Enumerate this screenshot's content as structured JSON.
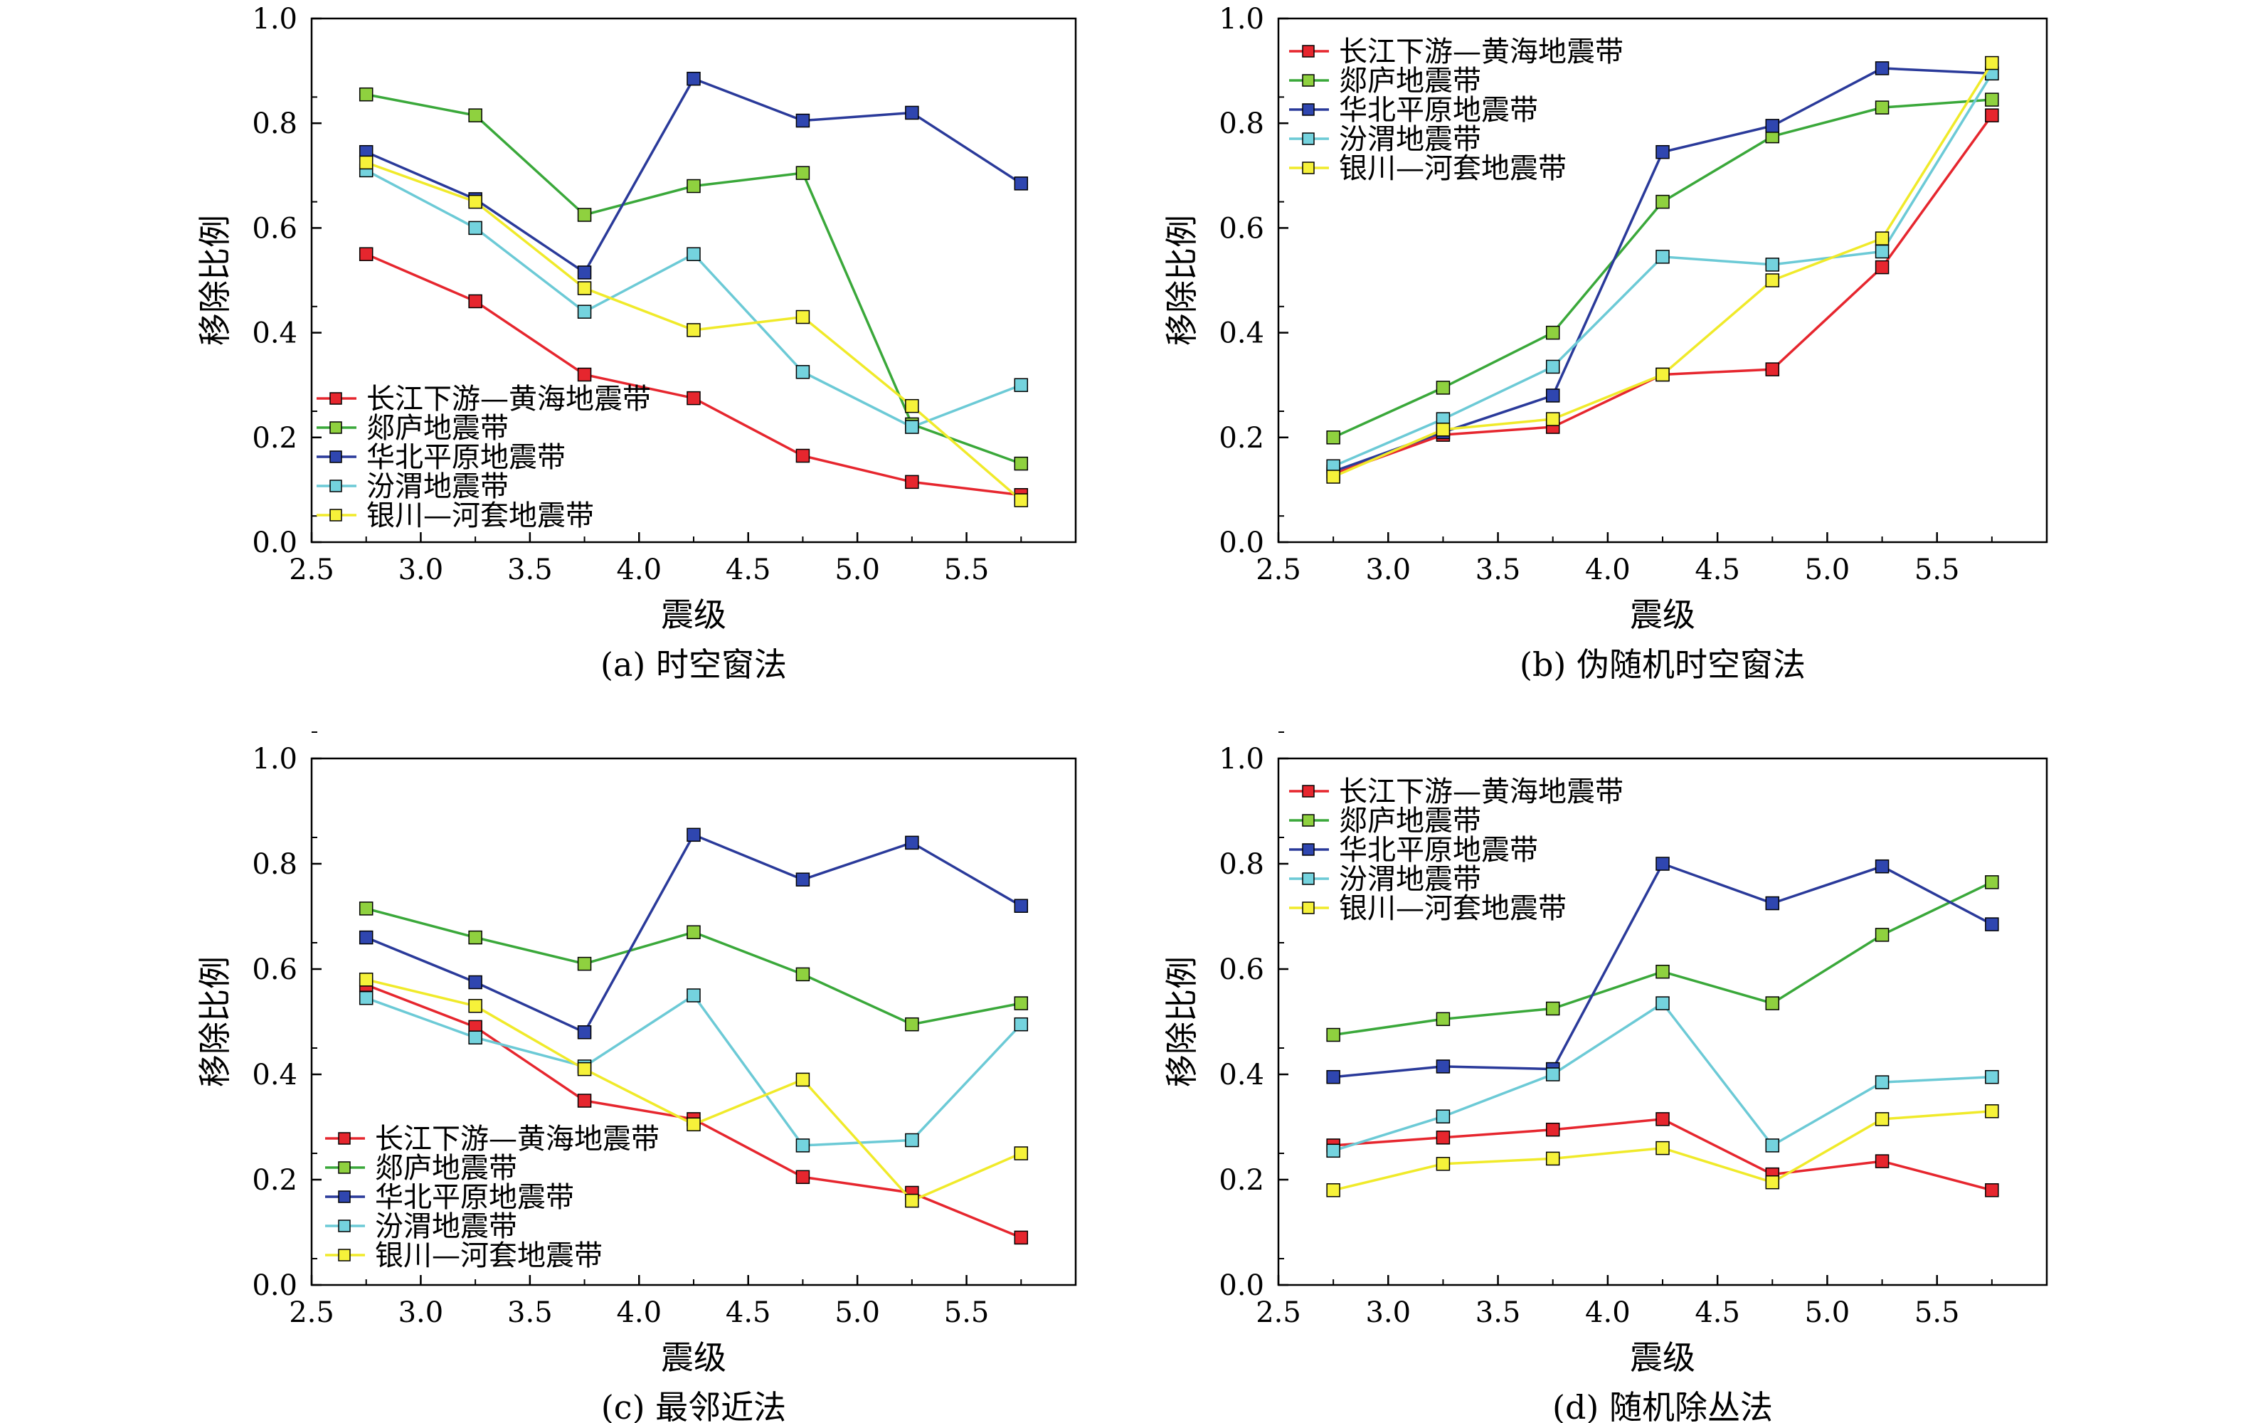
{
  "series_styles": [
    {
      "line_color": "#e6262e",
      "marker_fill": "#e6262e"
    },
    {
      "line_color": "#3aa83a",
      "marker_fill": "#8fd13f"
    },
    {
      "line_color": "#2a3a9a",
      "marker_fill": "#2f46b0"
    },
    {
      "line_color": "#6ccad6",
      "marker_fill": "#74d3de"
    },
    {
      "line_color": "#f0ea2a",
      "marker_fill": "#f6f23a"
    }
  ],
  "chart_data": [
    {
      "type": "line",
      "caption": "(a) 时空窗法",
      "xlabel": "震级",
      "ylabel": "移除比例",
      "xlim": [
        2.5,
        6.0
      ],
      "ylim": [
        0.0,
        1.0
      ],
      "xticks": [
        "2.5",
        "3.0",
        "3.5",
        "4.0",
        "4.5",
        "5.0",
        "5.5"
      ],
      "yticks": [
        "0.0",
        "0.2",
        "0.4",
        "0.6",
        "0.8",
        "1.0"
      ],
      "legend_position": "bottom-left",
      "x": [
        2.75,
        3.25,
        3.75,
        4.25,
        4.75,
        5.25,
        5.75
      ],
      "series": [
        {
          "name": "长江下游—黄海地震带",
          "values": [
            0.55,
            0.46,
            0.32,
            0.275,
            0.165,
            0.115,
            0.09
          ]
        },
        {
          "name": "郯庐地震带",
          "values": [
            0.855,
            0.815,
            0.625,
            0.68,
            0.705,
            0.225,
            0.15
          ]
        },
        {
          "name": "华北平原地震带",
          "values": [
            0.745,
            0.655,
            0.515,
            0.885,
            0.805,
            0.82,
            0.685
          ]
        },
        {
          "name": "汾渭地震带",
          "values": [
            0.71,
            0.6,
            0.44,
            0.55,
            0.325,
            0.22,
            0.3
          ]
        },
        {
          "name": "银川—河套地震带",
          "values": [
            0.725,
            0.65,
            0.485,
            0.405,
            0.43,
            0.26,
            0.08
          ]
        }
      ]
    },
    {
      "type": "line",
      "caption": "(b) 伪随机时空窗法",
      "xlabel": "震级",
      "ylabel": "移除比例",
      "xlim": [
        2.5,
        6.0
      ],
      "ylim": [
        0.0,
        1.0
      ],
      "xticks": [
        "2.5",
        "3.0",
        "3.5",
        "4.0",
        "4.5",
        "5.0",
        "5.5"
      ],
      "yticks": [
        "0.0",
        "0.2",
        "0.4",
        "0.6",
        "0.8",
        "1.0"
      ],
      "legend_position": "top-left",
      "x": [
        2.75,
        3.25,
        3.75,
        4.25,
        4.75,
        5.25,
        5.75
      ],
      "series": [
        {
          "name": "长江下游—黄海地震带",
          "values": [
            0.13,
            0.205,
            0.22,
            0.32,
            0.33,
            0.525,
            0.815
          ]
        },
        {
          "name": "郯庐地震带",
          "values": [
            0.2,
            0.295,
            0.4,
            0.65,
            0.775,
            0.83,
            0.845
          ]
        },
        {
          "name": "华北平原地震带",
          "values": [
            0.135,
            0.21,
            0.28,
            0.745,
            0.795,
            0.905,
            0.895
          ]
        },
        {
          "name": "汾渭地震带",
          "values": [
            0.145,
            0.235,
            0.335,
            0.545,
            0.53,
            0.555,
            0.895
          ]
        },
        {
          "name": "银川—河套地震带",
          "values": [
            0.125,
            0.215,
            0.235,
            0.32,
            0.5,
            0.58,
            0.915
          ]
        }
      ]
    },
    {
      "type": "line",
      "caption": "(c) 最邻近法",
      "xlabel": "震级",
      "ylabel": "移除比例",
      "xlim": [
        2.5,
        6.0
      ],
      "ylim": [
        0.0,
        1.0
      ],
      "xticks": [
        "2.5",
        "3.0",
        "3.5",
        "4.0",
        "4.5",
        "5.0",
        "5.5"
      ],
      "yticks": [
        "0.0",
        "0.2",
        "0.4",
        "0.6",
        "0.8",
        "1.0"
      ],
      "legend_position": "bottom-left",
      "x": [
        2.75,
        3.25,
        3.75,
        4.25,
        4.75,
        5.25,
        5.75
      ],
      "series": [
        {
          "name": "长江下游—黄海地震带",
          "values": [
            0.57,
            0.49,
            0.35,
            0.315,
            0.205,
            0.175,
            0.09
          ]
        },
        {
          "name": "郯庐地震带",
          "values": [
            0.715,
            0.66,
            0.61,
            0.67,
            0.59,
            0.495,
            0.535
          ]
        },
        {
          "name": "华北平原地震带",
          "values": [
            0.66,
            0.575,
            0.48,
            0.855,
            0.77,
            0.84,
            0.72
          ]
        },
        {
          "name": "汾渭地震带",
          "values": [
            0.545,
            0.47,
            0.415,
            0.55,
            0.265,
            0.275,
            0.495
          ]
        },
        {
          "name": "银川—河套地震带",
          "values": [
            0.58,
            0.53,
            0.41,
            0.305,
            0.39,
            0.16,
            0.25
          ]
        }
      ]
    },
    {
      "type": "line",
      "caption": "(d) 随机除丛法",
      "xlabel": "震级",
      "ylabel": "移除比例",
      "xlim": [
        2.5,
        6.0
      ],
      "ylim": [
        0.0,
        1.0
      ],
      "xticks": [
        "2.5",
        "3.0",
        "3.5",
        "4.0",
        "4.5",
        "5.0",
        "5.5"
      ],
      "yticks": [
        "0.0",
        "0.2",
        "0.4",
        "0.6",
        "0.8",
        "1.0"
      ],
      "legend_position": "top-left",
      "x": [
        2.75,
        3.25,
        3.75,
        4.25,
        4.75,
        5.25,
        5.75
      ],
      "series": [
        {
          "name": "长江下游—黄海地震带",
          "values": [
            0.265,
            0.28,
            0.295,
            0.315,
            0.21,
            0.235,
            0.18
          ]
        },
        {
          "name": "郯庐地震带",
          "values": [
            0.475,
            0.505,
            0.525,
            0.595,
            0.535,
            0.665,
            0.765
          ]
        },
        {
          "name": "华北平原地震带",
          "values": [
            0.395,
            0.415,
            0.41,
            0.8,
            0.725,
            0.795,
            0.685
          ]
        },
        {
          "name": "汾渭地震带",
          "values": [
            0.255,
            0.32,
            0.4,
            0.535,
            0.265,
            0.385,
            0.395
          ]
        },
        {
          "name": "银川—河套地震带",
          "values": [
            0.18,
            0.23,
            0.24,
            0.26,
            0.195,
            0.315,
            0.33
          ]
        }
      ]
    }
  ]
}
